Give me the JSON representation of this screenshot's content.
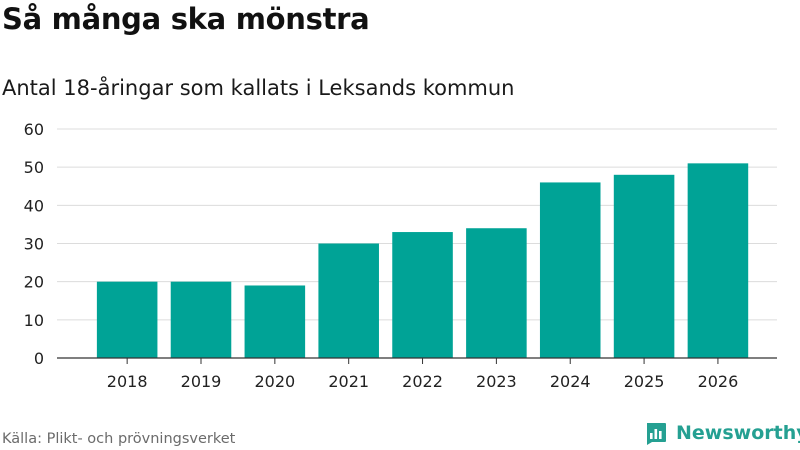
{
  "title": "Så många ska mönstra",
  "subtitle": "Antal 18-åringar som kallats i Leksands kommun",
  "source": "Källa: Plikt- och prövningsverket",
  "brand": {
    "name": "Newsworthy",
    "icon": "newsworthy-logo-icon"
  },
  "colors": {
    "bar": "#00a396",
    "grid": "#dcdcdc",
    "axis": "#333333",
    "brand": "#25a092"
  },
  "chart_data": {
    "type": "bar",
    "title": "Så många ska mönstra",
    "subtitle": "Antal 18-åringar som kallats i Leksands kommun",
    "xlabel": "",
    "ylabel": "",
    "categories": [
      "2018",
      "2019",
      "2020",
      "2021",
      "2022",
      "2023",
      "2024",
      "2025",
      "2026"
    ],
    "values": [
      20,
      20,
      19,
      30,
      33,
      34,
      46,
      48,
      51
    ],
    "ylim": [
      0,
      60
    ],
    "yticks": [
      0,
      10,
      20,
      30,
      40,
      50,
      60
    ],
    "grid": true,
    "legend": "none"
  }
}
